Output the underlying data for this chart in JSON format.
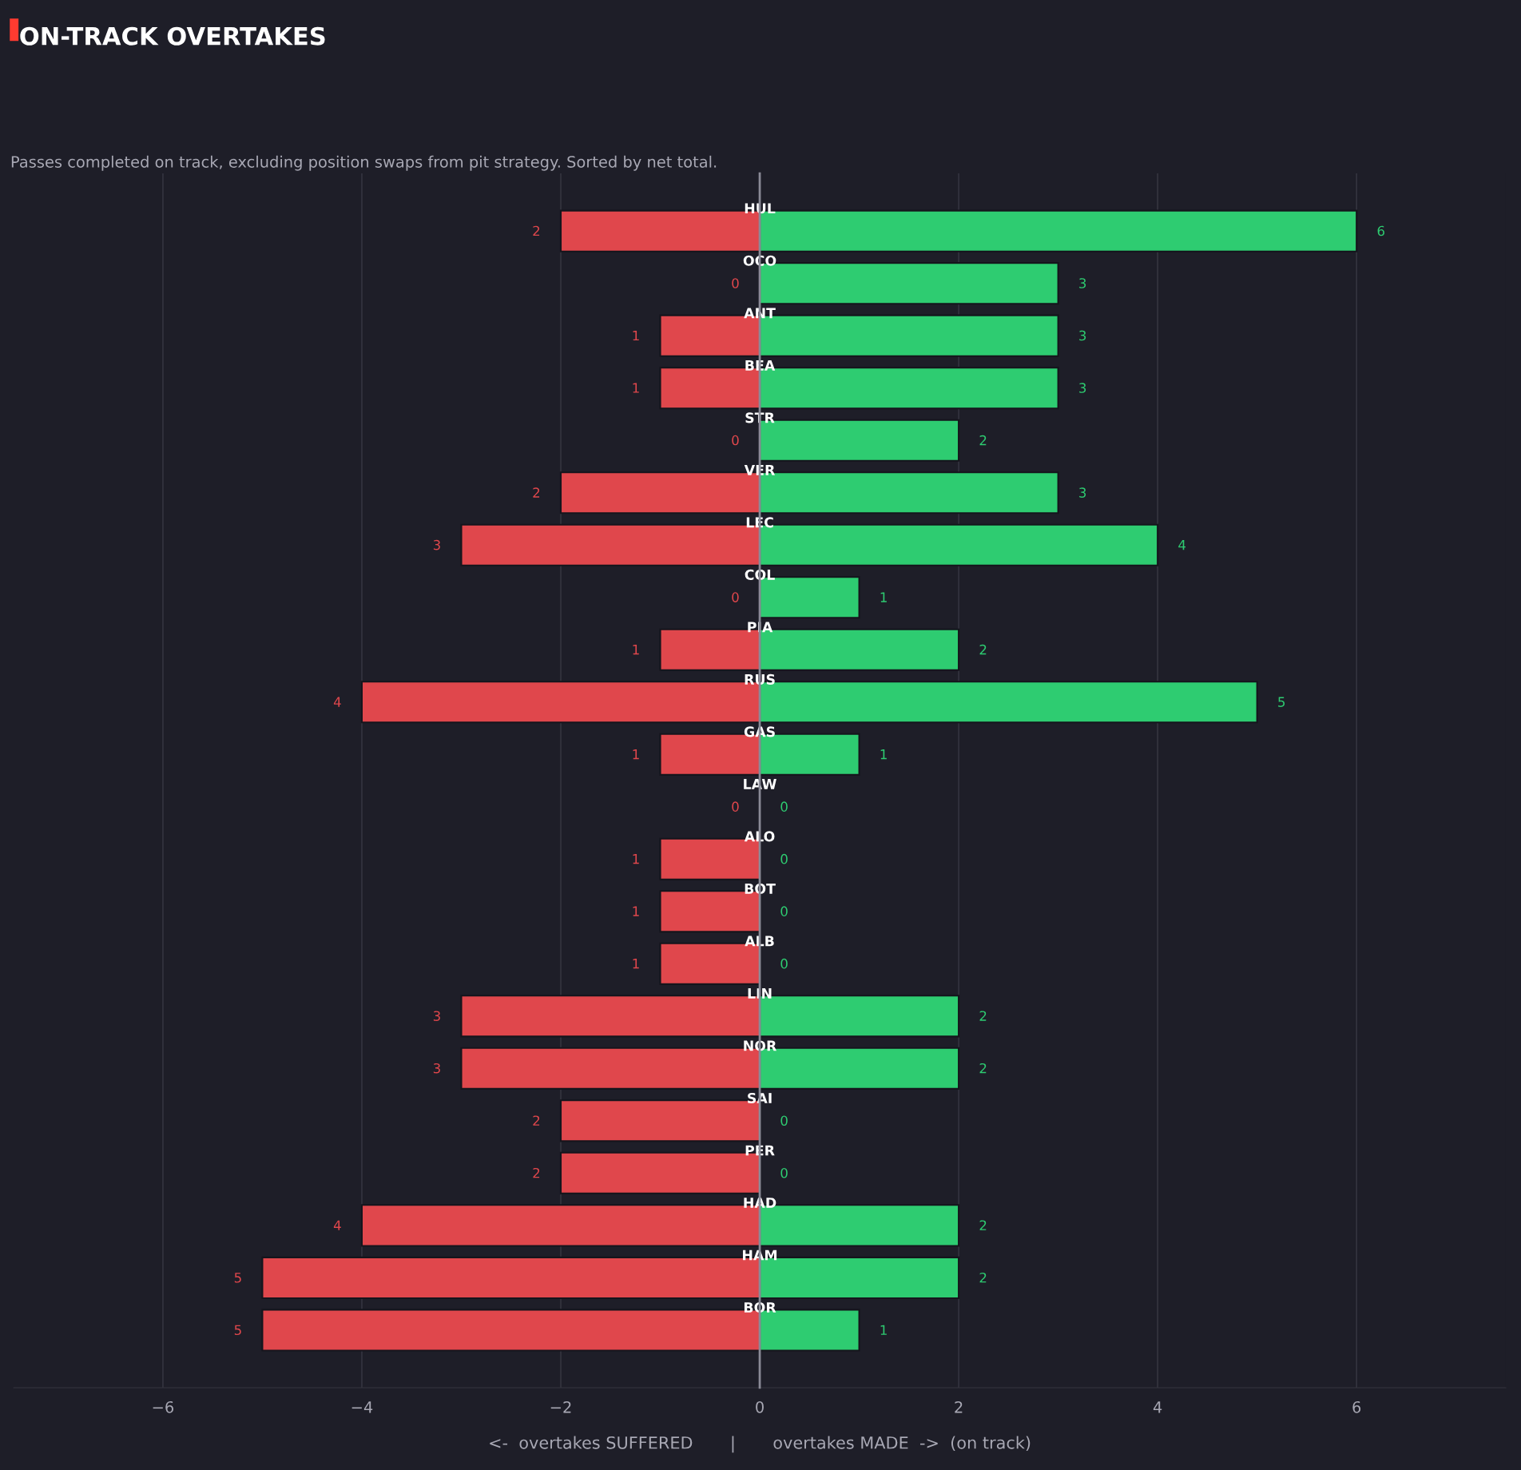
{
  "chart_data": {
    "type": "bar",
    "orientation": "horizontal",
    "title": "ON-TRACK OVERTAKES",
    "subtitle": "Passes completed on track, excluding position swaps from pit strategy. Sorted by net total.",
    "xlabel": "<-  overtakes SUFFERED       |       overtakes MADE  ->  (on track)",
    "categories": [
      "HUL",
      "OCO",
      "ANT",
      "BEA",
      "STR",
      "VER",
      "LEC",
      "COL",
      "PIA",
      "RUS",
      "GAS",
      "LAW",
      "ALO",
      "BOT",
      "ALB",
      "LIN",
      "NOR",
      "SAI",
      "PER",
      "HAD",
      "HAM",
      "BOR"
    ],
    "series": [
      {
        "color": "#e0474c",
        "values": [
          2,
          0,
          1,
          1,
          0,
          2,
          3,
          0,
          1,
          4,
          1,
          0,
          1,
          1,
          1,
          3,
          3,
          2,
          2,
          4,
          5,
          5
        ],
        "base": [
          -2,
          null,
          -1,
          -1,
          null,
          -2,
          -3,
          null,
          -1,
          -4,
          -1,
          null,
          -1,
          -1,
          -1,
          -3,
          -3,
          -2,
          -2,
          -4,
          -5,
          -5
        ],
        "value_labels": [
          "2",
          "0",
          "1",
          "1",
          "0",
          "2",
          "3",
          "0",
          "1",
          "4",
          "1",
          "0",
          "1",
          "1",
          "1",
          "3",
          "3",
          "2",
          "2",
          "4",
          "5",
          "5"
        ]
      },
      {
        "color": "#2ecc71",
        "values": [
          6,
          3,
          3,
          3,
          2,
          3,
          4,
          1,
          2,
          5,
          1,
          0,
          0,
          0,
          0,
          2,
          2,
          0,
          0,
          2,
          2,
          1
        ],
        "value_labels": [
          "6",
          "3",
          "3",
          "3",
          "2",
          "3",
          "4",
          "1",
          "2",
          "5",
          "1",
          "0",
          "0",
          "0",
          "0",
          "2",
          "2",
          "0",
          "0",
          "2",
          "2",
          "1"
        ]
      }
    ],
    "xlim": [
      -7.5,
      7.5
    ],
    "xticks": [
      {
        "value": -6,
        "label": "−6"
      },
      {
        "value": -4,
        "label": "−4"
      },
      {
        "value": -2,
        "label": "−2"
      },
      0,
      2,
      4,
      6
    ],
    "tick_labels": "x",
    "grid": "x",
    "legend": false
  }
}
